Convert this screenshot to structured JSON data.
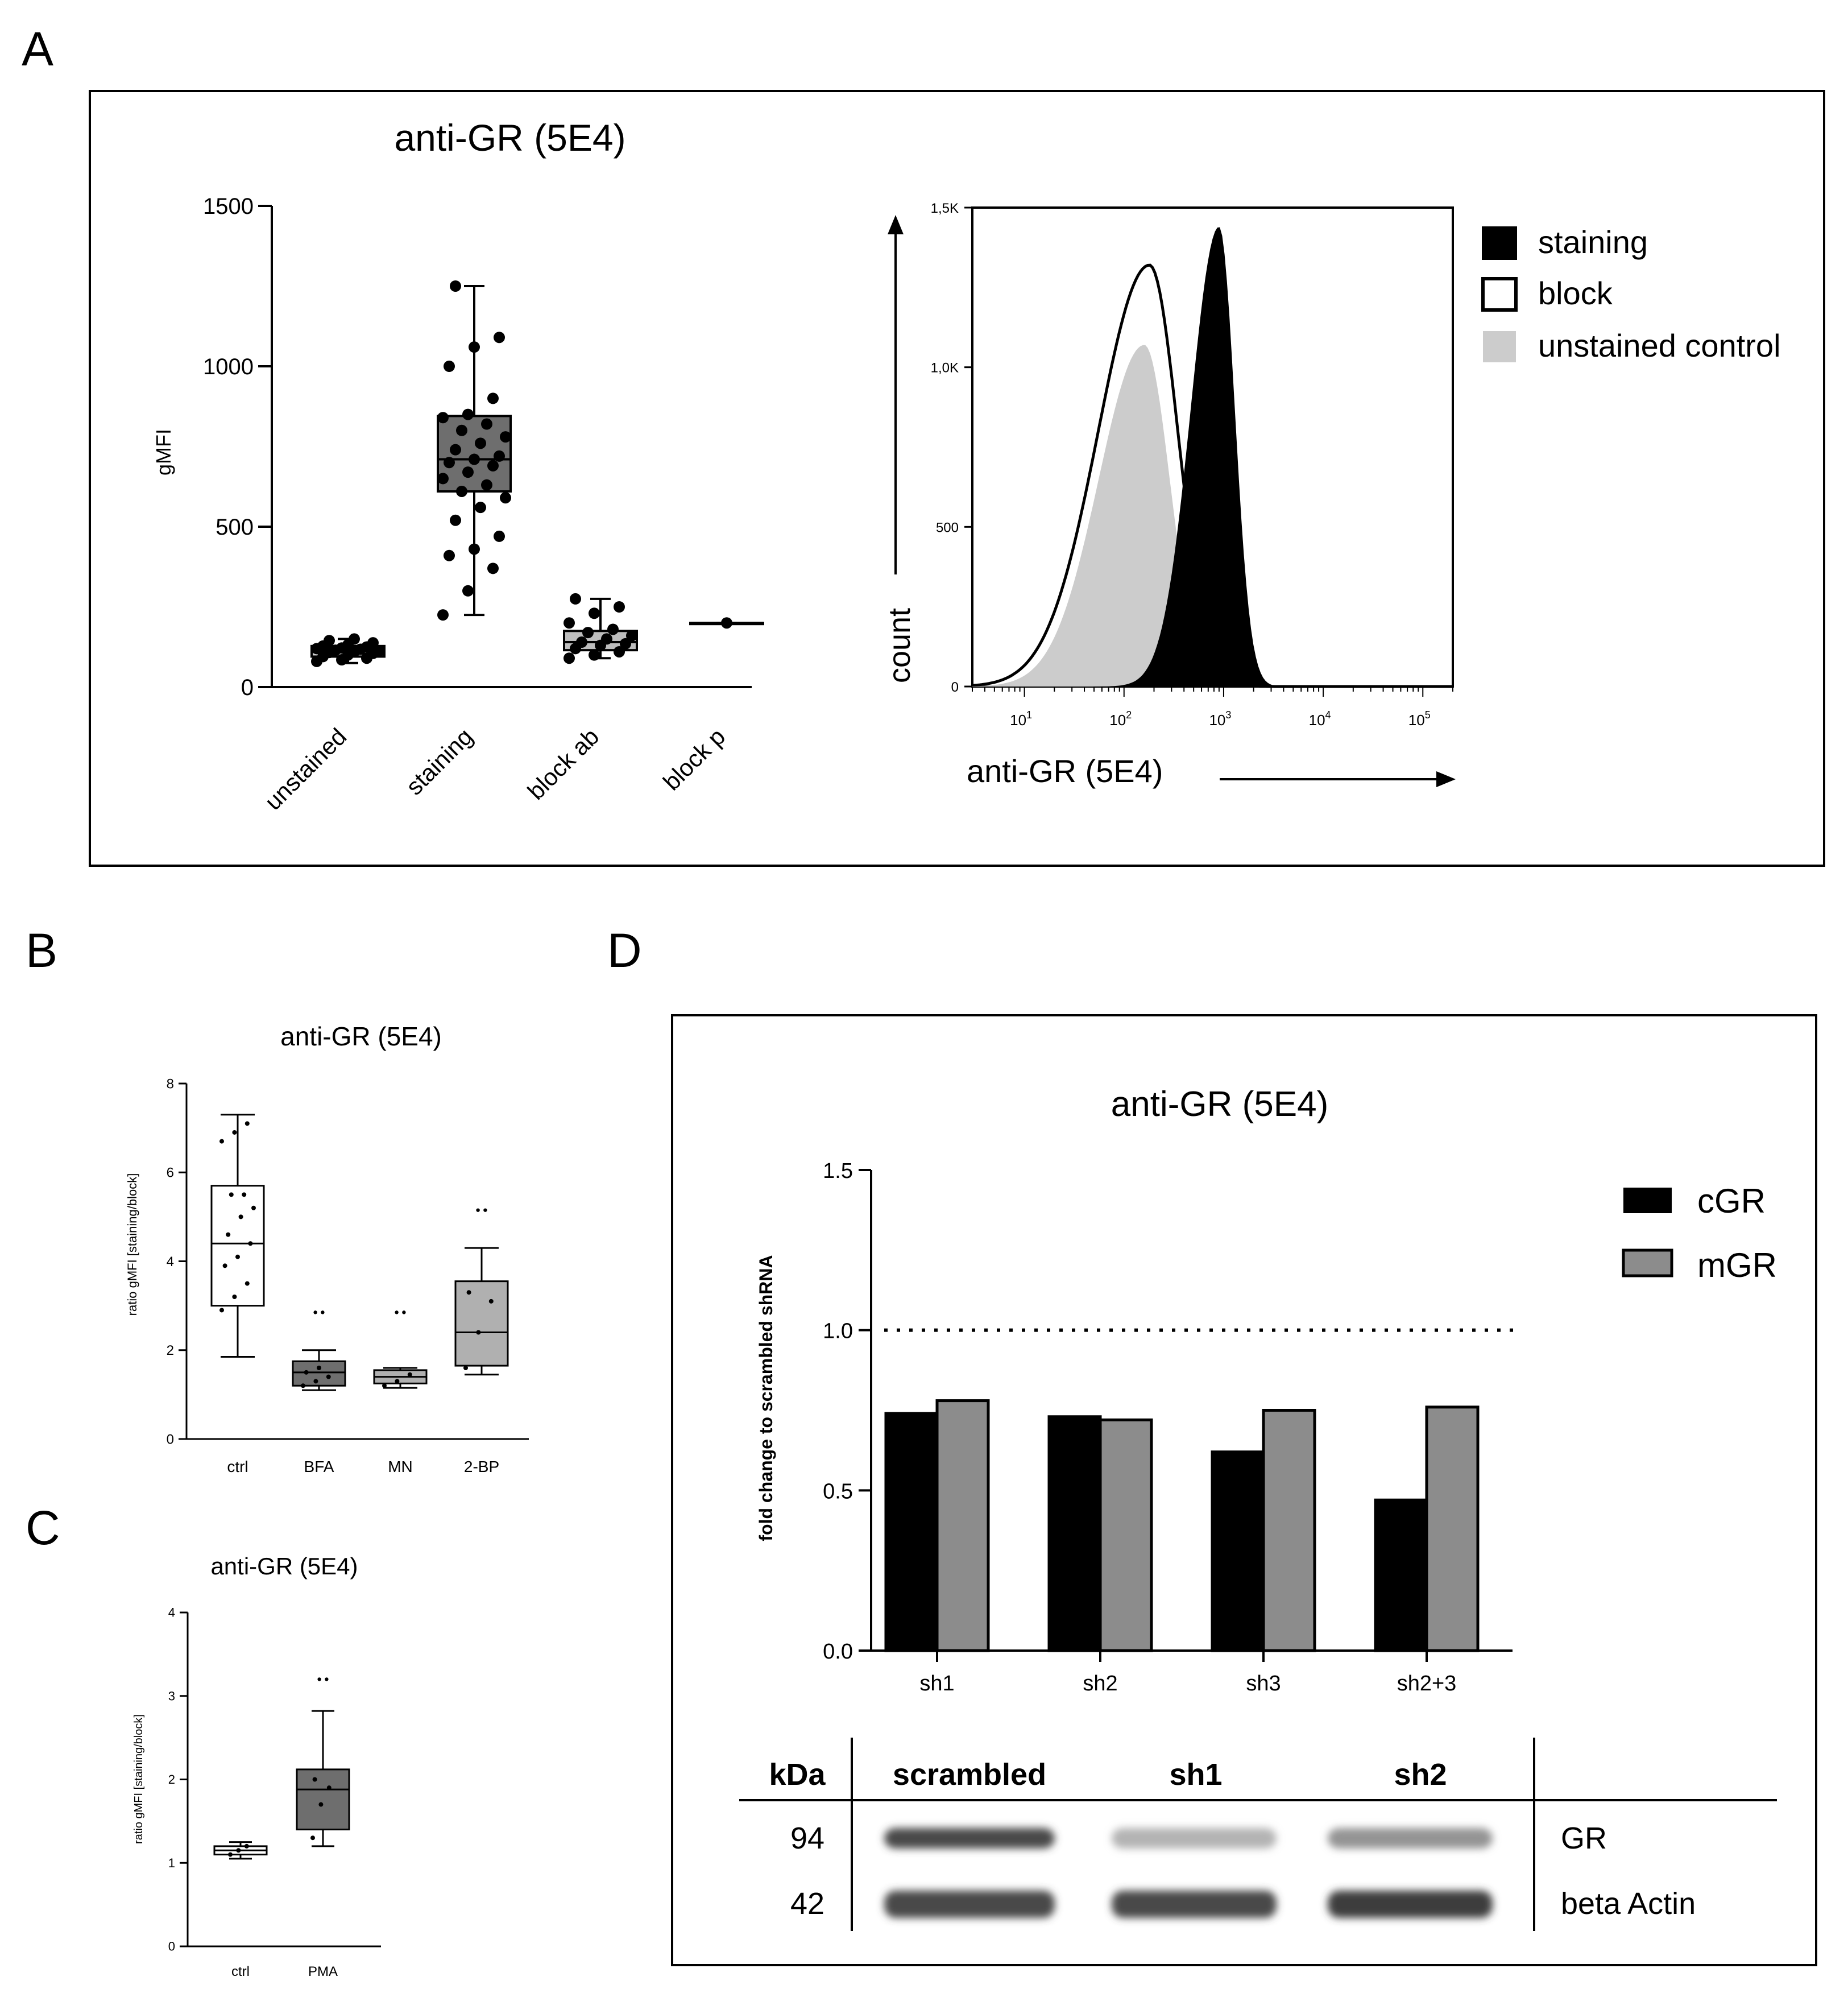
{
  "panel_labels": {
    "a": "A",
    "b": "B",
    "c": "C",
    "d": "D"
  },
  "chart_data": [
    {
      "id": "A1",
      "type": "boxplot",
      "title": "anti-GR (5E4)",
      "ylabel": "gMFI",
      "xlabel": "",
      "ylim": [
        0,
        1500
      ],
      "yticks": [
        0,
        500,
        1000,
        1500
      ],
      "categories": [
        "unstained",
        "staining",
        "block ab",
        "block p"
      ],
      "boxes": [
        {
          "category": "unstained",
          "min": 75,
          "q1": 95,
          "median": 112,
          "q3": 128,
          "max": 150,
          "fill": "#cfcfcf",
          "points": [
            80,
            85,
            90,
            95,
            100,
            105,
            108,
            110,
            112,
            115,
            118,
            120,
            122,
            125,
            128,
            132,
            138,
            145,
            150
          ]
        },
        {
          "category": "staining",
          "min": 225,
          "q1": 610,
          "median": 710,
          "q3": 845,
          "max": 1250,
          "fill": "#6e6e6e",
          "points": [
            225,
            300,
            370,
            410,
            430,
            470,
            520,
            560,
            590,
            610,
            630,
            650,
            670,
            690,
            700,
            710,
            720,
            740,
            760,
            780,
            800,
            820,
            840,
            850,
            900,
            1000,
            1060,
            1090,
            1250
          ]
        },
        {
          "category": "block ab",
          "min": 90,
          "q1": 115,
          "median": 140,
          "q3": 175,
          "max": 275,
          "fill": "#bdbdbd",
          "points": [
            90,
            100,
            110,
            120,
            130,
            135,
            140,
            150,
            160,
            170,
            180,
            200,
            230,
            250,
            275
          ]
        },
        {
          "category": "block p",
          "min": 200,
          "q1": 200,
          "median": 200,
          "q3": 200,
          "max": 200,
          "fill": "#bdbdbd",
          "points": [
            200
          ]
        }
      ]
    },
    {
      "id": "A2",
      "type": "histogram",
      "title": "",
      "xlabel": "anti-GR (5E4)",
      "ylabel": "count",
      "xscale": "log",
      "xlim": [
        3,
        200000
      ],
      "ylim": [
        0,
        1500
      ],
      "yticks": [
        "0",
        "500",
        "1,0K",
        "1,5K"
      ],
      "ytick_values": [
        0,
        500,
        1000,
        1500
      ],
      "xticks": [
        "10^1",
        "10^2",
        "10^3",
        "10^4",
        "10^5"
      ],
      "legend": [
        "staining",
        "block",
        "unstained control"
      ],
      "legend_position": "right",
      "series": [
        {
          "name": "staining",
          "style": "filled-black",
          "peak_x": 900,
          "peak_y": 1440,
          "width_decades": 0.21
        },
        {
          "name": "block",
          "style": "outline",
          "peak_x": 180,
          "peak_y": 1320,
          "width_decades": 0.38
        },
        {
          "name": "unstained control",
          "style": "filled-grey",
          "peak_x": 160,
          "peak_y": 1070,
          "width_decades": 0.34
        }
      ]
    },
    {
      "id": "B",
      "type": "boxplot",
      "title": "anti-GR (5E4)",
      "ylabel": "ratio gMFI [staining/block]",
      "xlabel": "",
      "ylim": [
        0,
        8
      ],
      "yticks": [
        0,
        2,
        4,
        6,
        8
      ],
      "categories": [
        "ctrl",
        "BFA",
        "MN",
        "2-BP"
      ],
      "boxes": [
        {
          "category": "ctrl",
          "min": 1.85,
          "q1": 3.0,
          "median": 4.4,
          "q3": 5.7,
          "max": 7.3,
          "fill": "#ffffff",
          "points": [
            2.9,
            3.2,
            3.5,
            3.9,
            4.1,
            4.4,
            4.6,
            5.0,
            5.2,
            5.5,
            5.5,
            6.7,
            6.9,
            7.1
          ],
          "outliers": []
        },
        {
          "category": "BFA",
          "min": 1.1,
          "q1": 1.2,
          "median": 1.5,
          "q3": 1.75,
          "max": 2.0,
          "fill": "#6e6e6e",
          "points": [
            1.2,
            1.3,
            1.4,
            1.5,
            1.6
          ],
          "outliers": [
            2.85
          ]
        },
        {
          "category": "MN",
          "min": 1.15,
          "q1": 1.25,
          "median": 1.4,
          "q3": 1.55,
          "max": 1.6,
          "fill": "#b0b0b0",
          "points": [
            1.2,
            1.3,
            1.45
          ],
          "outliers": [
            2.85
          ]
        },
        {
          "category": "2-BP",
          "min": 1.45,
          "q1": 1.65,
          "median": 2.4,
          "q3": 3.55,
          "max": 4.3,
          "fill": "#b0b0b0",
          "points": [
            1.6,
            2.4,
            3.1,
            3.3
          ],
          "outliers": [
            5.15
          ]
        }
      ]
    },
    {
      "id": "C",
      "type": "boxplot",
      "title": "anti-GR (5E4)",
      "ylabel": "ratio gMFI [staining/block]",
      "xlabel": "",
      "ylim": [
        0,
        4
      ],
      "yticks": [
        0,
        1,
        2,
        3,
        4
      ],
      "categories": [
        "ctrl",
        "PMA"
      ],
      "boxes": [
        {
          "category": "ctrl",
          "min": 1.05,
          "q1": 1.1,
          "median": 1.15,
          "q3": 1.2,
          "max": 1.25,
          "fill": "#ffffff",
          "points": [
            1.1,
            1.15,
            1.2
          ],
          "outliers": []
        },
        {
          "category": "PMA",
          "min": 1.2,
          "q1": 1.4,
          "median": 1.88,
          "q3": 2.12,
          "max": 2.82,
          "fill": "#6e6e6e",
          "points": [
            1.3,
            1.7,
            1.9,
            2.0
          ],
          "outliers": [
            3.2
          ]
        }
      ]
    },
    {
      "id": "D",
      "type": "bar",
      "title": "anti-GR (5E4)",
      "ylabel": "fold change to scrambled shRNA",
      "xlabel": "",
      "ylim": [
        0,
        1.5
      ],
      "yticks": [
        "0.0",
        "0.5",
        "1.0",
        "1.5"
      ],
      "ytick_values": [
        0,
        0.5,
        1.0,
        1.5
      ],
      "reference_line": 1.0,
      "categories": [
        "sh1",
        "sh2",
        "sh3",
        "sh2+3"
      ],
      "legend_position": "top-right",
      "series": [
        {
          "name": "cGR",
          "color": "#000000",
          "values": [
            0.74,
            0.73,
            0.62,
            0.47
          ]
        },
        {
          "name": "mGR",
          "color": "#8c8c8c",
          "values": [
            0.78,
            0.72,
            0.75,
            0.76
          ]
        }
      ]
    }
  ],
  "western_blot": {
    "header_kda": "kDa",
    "lanes": [
      "scrambled",
      "sh1",
      "sh2"
    ],
    "rows": [
      {
        "kda": "94",
        "label": "GR",
        "intensities": [
          0.85,
          0.35,
          0.5
        ]
      },
      {
        "kda": "42",
        "label": "beta Actin",
        "intensities": [
          0.85,
          0.85,
          0.9
        ]
      }
    ]
  }
}
